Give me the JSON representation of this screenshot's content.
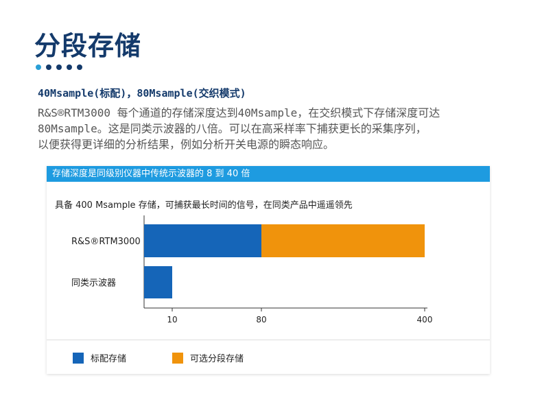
{
  "page": {
    "title": "分段存储",
    "subhead": "40Msample(标配)，80Msample(交织模式)",
    "body_lines": [
      "R&S®RTM3000 每个通道的存储深度达到40Msample，在交织模式下存储深度可达",
      "80Msample。这是同类示波器的八倍。可以在高采样率下捕获更长的采集序列，",
      "以便获得更详细的分析结果，例如分析开关电源的瞬态响应。"
    ]
  },
  "card": {
    "header": "存储深度是同级别仪器中传统示波器的 8 到 40 倍"
  },
  "colors": {
    "accent": "#1e9be0",
    "title": "#143a6b",
    "standard": "#1565b8",
    "optional": "#f0930c"
  },
  "chart_data": {
    "type": "bar",
    "orientation": "horizontal",
    "stacked": true,
    "title": "具备 400 Msample 存储，可捕获最长时间的信号，在同类产品中遥遥领先",
    "categories": [
      "R&S®RTM3000",
      "同类示波器"
    ],
    "series": [
      {
        "name": "标配存储",
        "values": [
          80,
          10
        ],
        "color": "#1565b8"
      },
      {
        "name": "可选分段存储",
        "values": [
          320,
          0
        ],
        "color": "#f0930c"
      }
    ],
    "x_ticks": [
      10,
      80,
      400
    ],
    "legend_position": "bottom",
    "grid": false
  }
}
